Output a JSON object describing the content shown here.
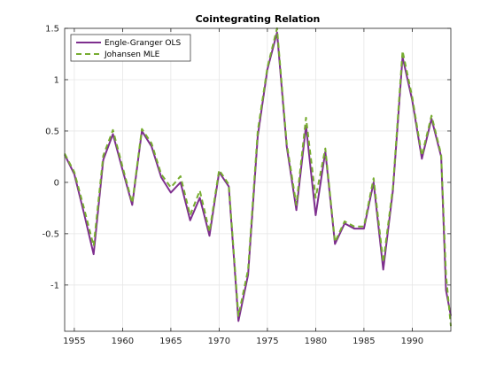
{
  "chart_data": {
    "type": "line",
    "title": "Cointegrating Relation",
    "xlabel": "",
    "ylabel": "",
    "xlim": [
      1954,
      1994
    ],
    "ylim": [
      -1.45,
      1.5
    ],
    "xticks": [
      1955,
      1960,
      1965,
      1970,
      1975,
      1980,
      1985,
      1990
    ],
    "yticks": [
      -1,
      -0.5,
      0,
      0.5,
      1,
      1.5
    ],
    "ytick_labels": [
      "-1",
      "-0.5",
      "0",
      "0.5",
      "1",
      "1.5"
    ],
    "grid": true,
    "legend_position": "top-left",
    "x": [
      1954,
      1955,
      1956,
      1957,
      1958,
      1959,
      1960,
      1961,
      1962,
      1963,
      1964,
      1965,
      1966,
      1967,
      1968,
      1969,
      1970,
      1971,
      1972,
      1973,
      1974,
      1975,
      1976,
      1977,
      1978,
      1979,
      1980,
      1981,
      1982,
      1983,
      1984,
      1985,
      1986,
      1987,
      1988,
      1989,
      1990,
      1991,
      1992,
      1993,
      1993.5,
      1994
    ],
    "series": [
      {
        "name": "Engle-Granger OLS",
        "color": "#7e2f8e",
        "dash": "solid",
        "values": [
          0.27,
          0.08,
          -0.3,
          -0.7,
          0.22,
          0.47,
          0.12,
          -0.22,
          0.5,
          0.35,
          0.05,
          -0.1,
          0.0,
          -0.37,
          -0.15,
          -0.52,
          0.1,
          -0.04,
          -1.35,
          -0.9,
          0.45,
          1.1,
          1.46,
          0.35,
          -0.27,
          0.55,
          -0.32,
          0.3,
          -0.6,
          -0.4,
          -0.45,
          -0.45,
          0.0,
          -0.85,
          -0.08,
          1.22,
          0.8,
          0.23,
          0.62,
          0.25,
          -1.05,
          -1.3
        ]
      },
      {
        "name": "Johansen MLE",
        "color": "#77ac30",
        "dash": "dashed",
        "values": [
          0.28,
          0.1,
          -0.25,
          -0.62,
          0.26,
          0.51,
          0.15,
          -0.2,
          0.52,
          0.38,
          0.08,
          -0.05,
          0.06,
          -0.32,
          -0.08,
          -0.48,
          0.12,
          -0.02,
          -1.3,
          -0.85,
          0.5,
          1.12,
          1.5,
          0.38,
          -0.22,
          0.63,
          -0.15,
          0.33,
          -0.58,
          -0.38,
          -0.43,
          -0.43,
          0.04,
          -0.78,
          -0.05,
          1.28,
          0.83,
          0.26,
          0.65,
          0.27,
          -0.9,
          -1.4
        ]
      }
    ]
  }
}
